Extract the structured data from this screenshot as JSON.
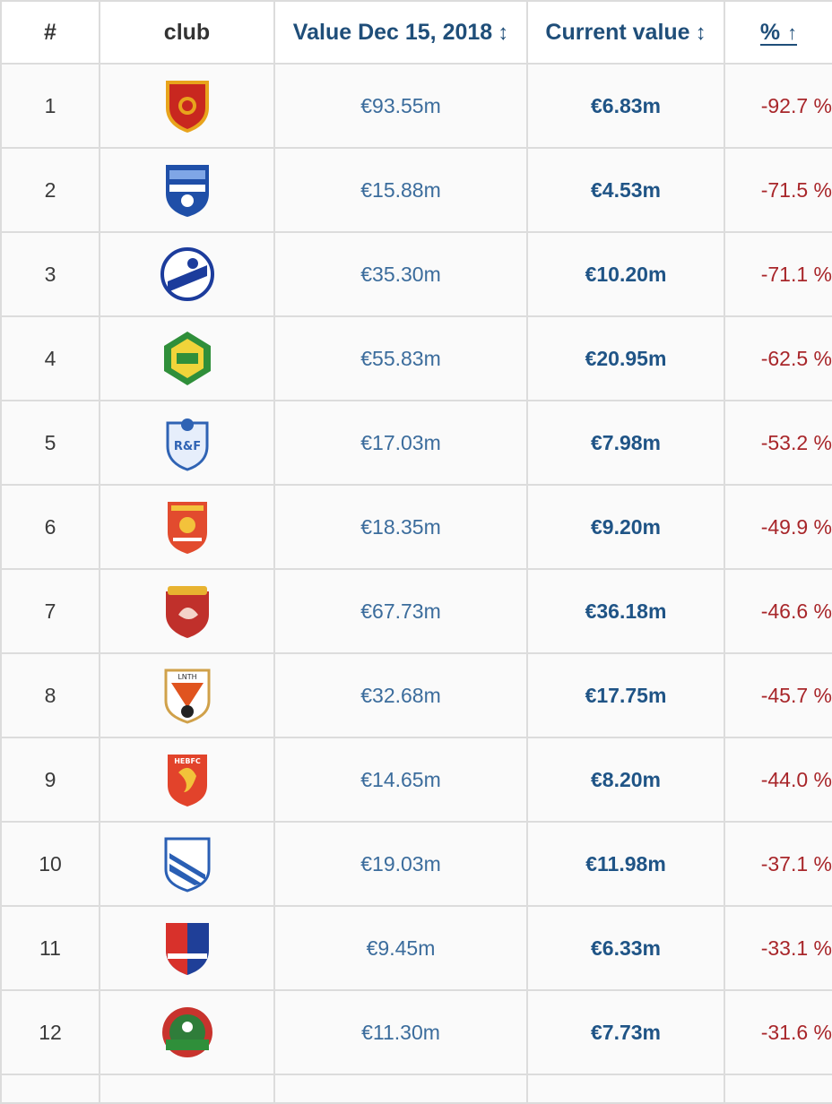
{
  "header": {
    "rank": "#",
    "club": "club",
    "value_dec": "Value Dec 15, 2018",
    "current": "Current value",
    "pct": "%",
    "sort_icon": "↕",
    "pct_sort_icon": "↑"
  },
  "rows": [
    {
      "rank": "1",
      "value_dec": "€93.55m",
      "current": "€6.83m",
      "pct": "-92.7 %",
      "crest": "guangzhou-evergrande-crest",
      "crest_text": ""
    },
    {
      "rank": "2",
      "value_dec": "€15.88m",
      "current": "€4.53m",
      "pct": "-71.5 %",
      "crest": "dalian-yifang-crest",
      "crest_text": ""
    },
    {
      "rank": "3",
      "value_dec": "€35.30m",
      "current": "€10.20m",
      "pct": "-71.1 %",
      "crest": "tianjin-tianhai-crest",
      "crest_text": ""
    },
    {
      "rank": "4",
      "value_dec": "€55.83m",
      "current": "€20.95m",
      "pct": "-62.5 %",
      "crest": "beijing-guoan-crest",
      "crest_text": ""
    },
    {
      "rank": "5",
      "value_dec": "€17.03m",
      "current": "€7.98m",
      "pct": "-53.2 %",
      "crest": "guangzhou-rf-crest",
      "crest_text": "R&F"
    },
    {
      "rank": "6",
      "value_dec": "€18.35m",
      "current": "€9.20m",
      "pct": "-49.9 %",
      "crest": "chongqing-lifan-crest",
      "crest_text": ""
    },
    {
      "rank": "7",
      "value_dec": "€67.73m",
      "current": "€36.18m",
      "pct": "-46.6 %",
      "crest": "shanghai-sipg-crest",
      "crest_text": ""
    },
    {
      "rank": "8",
      "value_dec": "€32.68m",
      "current": "€17.75m",
      "pct": "-45.7 %",
      "crest": "shandong-luneng-crest",
      "crest_text": "LNTH"
    },
    {
      "rank": "9",
      "value_dec": "€14.65m",
      "current": "€8.20m",
      "pct": "-44.0 %",
      "crest": "hebei-fc-crest",
      "crest_text": "HEBFC"
    },
    {
      "rank": "10",
      "value_dec": "€19.03m",
      "current": "€11.98m",
      "pct": "-37.1 %",
      "crest": "shanghai-shenhua-crest",
      "crest_text": ""
    },
    {
      "rank": "11",
      "value_dec": "€9.45m",
      "current": "€6.33m",
      "pct": "-33.1 %",
      "crest": "tianjin-teda-crest",
      "crest_text": ""
    },
    {
      "rank": "12",
      "value_dec": "€11.30m",
      "current": "€7.73m",
      "pct": "-31.6 %",
      "crest": "shenzhen-fc-crest",
      "crest_text": ""
    }
  ],
  "colors": {
    "header_text": "#1f4e79",
    "value_text": "#3b6c9c",
    "current_text": "#1f5486",
    "pct_text": "#a8262a",
    "grid": "#dcdcdc",
    "row_bg": "#fafafa"
  }
}
